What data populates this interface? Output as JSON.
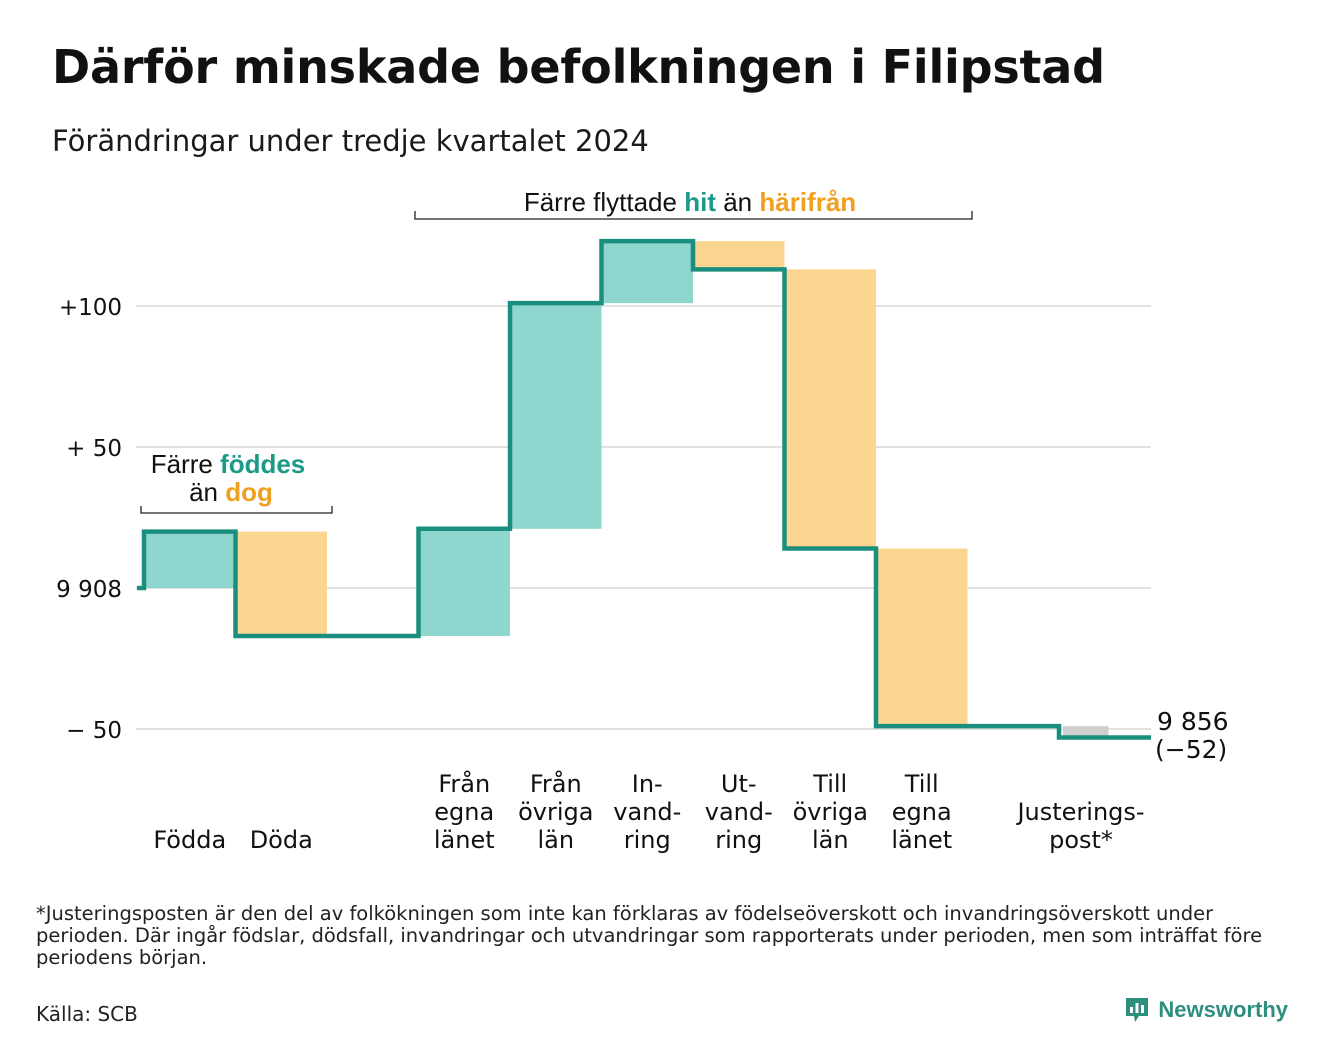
{
  "title": "Därför minskade befolkningen i Filipstad",
  "subtitle": "Förändringar under tredje kvartalet 2024",
  "colors": {
    "increase": "#8ed6ce",
    "decrease": "#fbd690",
    "adjustment": "#cfcfcf",
    "line": "#1b8f7f",
    "teal_text": "#1b9a88",
    "orange_text": "#f0a020",
    "grid": "#e2e2e2"
  },
  "annotations": {
    "births_deaths": {
      "l1_a": "Färre ",
      "l1_b": "föddes",
      "l2_a": "än ",
      "l2_b": "dog"
    },
    "moves": {
      "a": "Färre flyttade ",
      "b": "hit",
      "c": " än ",
      "d": "härifrån"
    }
  },
  "footnote": "*Justeringsposten är den del av folkökningen som inte kan förklaras av födelseöverskott och invandringsöverskott under perioden. Där ingår födslar, dödsfall, invandringar och utvandringar som rapporterats under perioden, men som inträffat före periodens början.",
  "source": "Källa: SCB",
  "brand": "Newsworthy",
  "chart_data": {
    "type": "waterfall",
    "start_value": 9908,
    "end_value": 9856,
    "end_label": "9 856",
    "end_change_label": "(−52)",
    "ylim": [
      -55,
      125
    ],
    "yticks": [
      {
        "value": 100,
        "label": "+100"
      },
      {
        "value": 50,
        "label": "+ 50"
      },
      {
        "value": 0,
        "label": "9 908"
      },
      {
        "value": -50,
        "label": "−  50"
      }
    ],
    "categories": [
      {
        "lines": [
          "Födda"
        ],
        "change": 20,
        "kind": "increase",
        "slot": 0
      },
      {
        "lines": [
          "Döda"
        ],
        "change": -37,
        "kind": "decrease",
        "slot": 1
      },
      {
        "lines": [
          "Från",
          "egna",
          "länet"
        ],
        "change": 38,
        "kind": "increase",
        "slot": 3
      },
      {
        "lines": [
          "Från",
          "övriga",
          "län"
        ],
        "change": 80,
        "kind": "increase",
        "slot": 4
      },
      {
        "lines": [
          "In-",
          "vand-",
          "ring"
        ],
        "change": 22,
        "kind": "increase",
        "slot": 5
      },
      {
        "lines": [
          "Ut-",
          "vand-",
          "ring"
        ],
        "change": -10,
        "kind": "decrease",
        "slot": 6
      },
      {
        "lines": [
          "Till",
          "övriga",
          "län"
        ],
        "change": -99,
        "kind": "decrease",
        "slot": 7
      },
      {
        "lines": [
          "Till",
          "egna",
          "länet"
        ],
        "change": -63,
        "kind": "decrease",
        "slot": 8
      },
      {
        "lines": [
          "Justerings-",
          "post*"
        ],
        "change": -4,
        "kind": "adjustment",
        "slot": 10
      }
    ]
  }
}
